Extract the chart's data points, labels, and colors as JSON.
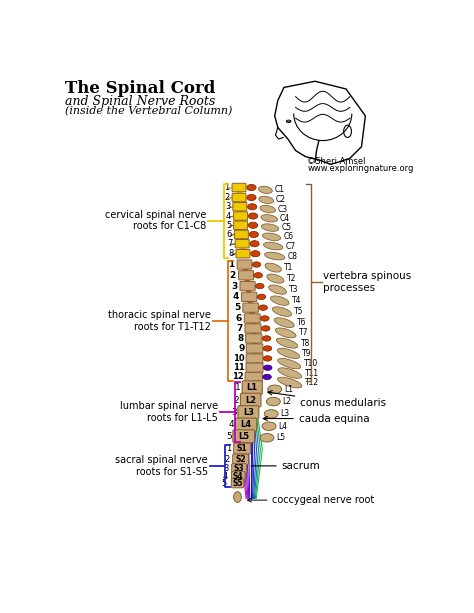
{
  "title_line1": "The Spinal Cord",
  "title_line2": "and Spinal Nerve Roots",
  "title_line3": "(inside the Vertebral Column)",
  "credit_line1": "©Sheri Amsel",
  "credit_line2": "www.exploringnature.org",
  "bg_color": "#ffffff",
  "cervical_color": "#f0c800",
  "thoracic_color": "#e07010",
  "cord_orange": "#d04000",
  "cord_purple": "#5500bb",
  "vertebra_color": "#c8a87a",
  "vertebra_edge": "#8a6030",
  "spinous_color": "#c8b080",
  "spinous_edge": "#7a5020",
  "left_label_cervical": "cervical spinal nerve\nroots for C1-C8",
  "left_label_thoracic": "thoracic spinal nerve\nroots for T1-T12",
  "left_label_lumbar": "lumbar spinal nerve\nroots for L1-L5",
  "left_label_sacral": "sacral spinal nerve\nroots for S1-S5",
  "right_label_spinous": "vertebra spinous\nprocesses",
  "right_label_conus": "conus medularis",
  "right_label_cauda": "cauda equina",
  "right_label_sacrum": "sacrum",
  "right_label_coccygeal": "coccygeal nerve root",
  "cervical_labels": [
    "C1",
    "C2",
    "C3",
    "C4",
    "C5",
    "C6",
    "C7",
    "C8"
  ],
  "thoracic_labels": [
    "T1",
    "T2",
    "T3",
    "T4",
    "T5",
    "T6",
    "T7",
    "T8",
    "T9",
    "T10",
    "T11",
    "T12"
  ],
  "lumbar_labels": [
    "L1",
    "L2",
    "L3",
    "L4",
    "L5"
  ],
  "sacral_labels": [
    "S1",
    "S2",
    "S3",
    "S4",
    "S5"
  ],
  "cauda_colors": [
    "#cc00cc",
    "#aa00cc",
    "#8800bb",
    "#6600aa",
    "#4400cc",
    "#2200dd",
    "#0000cc",
    "#0022bb",
    "#0044aa",
    "#006699",
    "#009966",
    "#00bb33"
  ],
  "nerve_root_colors_cervical": [
    "#dd8800",
    "#cc7700",
    "#bb6600",
    "#aa5500",
    "#994400",
    "#883300",
    "#772200",
    "#661100"
  ],
  "nerve_root_colors_thoracic": [
    "#dd6600",
    "#cc5500",
    "#bb4400",
    "#aa3300",
    "#993300",
    "#882200",
    "#771100",
    "#660000",
    "#550000",
    "#440000",
    "#6600aa",
    "#5500bb"
  ],
  "nerve_root_colors_lumbar": [
    "#aa8844",
    "#998833",
    "#887722",
    "#776611",
    "#665500"
  ],
  "nerve_root_colors_sacral": [
    "#3333cc",
    "#2244bb",
    "#1155aa",
    "#006699",
    "#009966"
  ]
}
